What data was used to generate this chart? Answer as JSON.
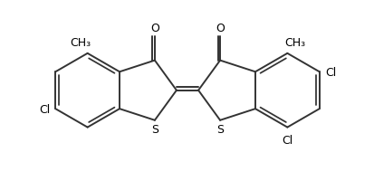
{
  "background_color": "#ffffff",
  "line_color": "#333333",
  "text_color": "#000000",
  "line_width": 1.4,
  "figsize": [
    4.14,
    2.01
  ],
  "dpi": 100,
  "xlim": [
    0,
    10
  ],
  "ylim": [
    0,
    4.85
  ]
}
